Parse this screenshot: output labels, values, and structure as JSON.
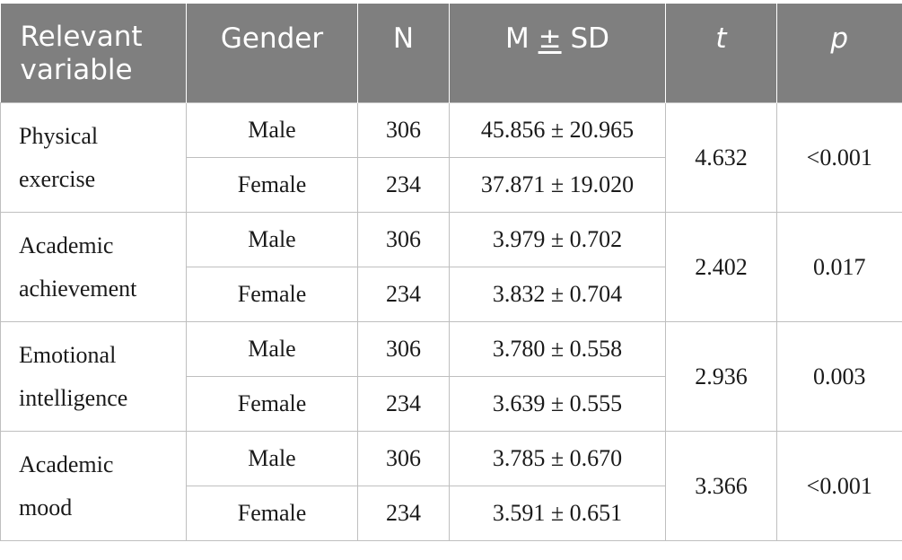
{
  "header": {
    "col_variable_line1": "Relevant",
    "col_variable_line2": "variable",
    "col_gender": "Gender",
    "col_n": "N",
    "col_msd_m": "M",
    "col_msd_pm": "±",
    "col_msd_sd": "SD",
    "col_t": "t",
    "col_p": "p"
  },
  "groups": [
    {
      "variable_line1": "Physical",
      "variable_line2": "exercise",
      "t": "4.632",
      "p": "<0.001",
      "rows": [
        {
          "gender": "Male",
          "n": "306",
          "msd": "45.856 ± 20.965"
        },
        {
          "gender": "Female",
          "n": "234",
          "msd": "37.871 ± 19.020"
        }
      ]
    },
    {
      "variable_line1": "Academic",
      "variable_line2": "achievement",
      "t": "2.402",
      "p": "0.017",
      "rows": [
        {
          "gender": "Male",
          "n": "306",
          "msd": "3.979 ± 0.702"
        },
        {
          "gender": "Female",
          "n": "234",
          "msd": "3.832 ± 0.704"
        }
      ]
    },
    {
      "variable_line1": "Emotional",
      "variable_line2": "intelligence",
      "t": "2.936",
      "p": "0.003",
      "rows": [
        {
          "gender": "Male",
          "n": "306",
          "msd": "3.780 ± 0.558"
        },
        {
          "gender": "Female",
          "n": "234",
          "msd": "3.639 ± 0.555"
        }
      ]
    },
    {
      "variable_line1": "Academic",
      "variable_line2": "mood",
      "t": "3.366",
      "p": "<0.001",
      "rows": [
        {
          "gender": "Male",
          "n": "306",
          "msd": "3.785 ± 0.670"
        },
        {
          "gender": "Female",
          "n": "234",
          "msd": "3.591 ± 0.651"
        }
      ]
    }
  ]
}
